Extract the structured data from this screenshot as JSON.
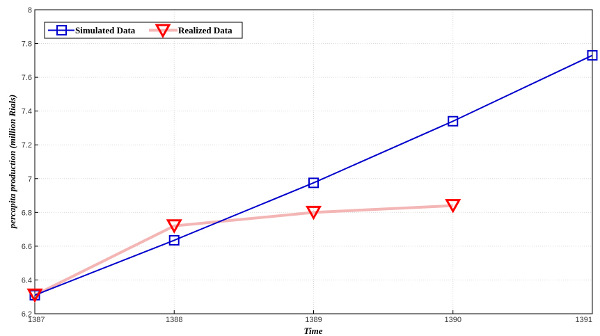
{
  "chart_data": {
    "type": "line",
    "x": [
      1387,
      1388,
      1389,
      1390,
      1391
    ],
    "xticks": [
      "1387",
      "1388",
      "1389",
      "1390",
      "1391"
    ],
    "xlim": [
      1387,
      1391
    ],
    "ylim": [
      6.2,
      8
    ],
    "yticks": [
      "6.2",
      "6.4",
      "6.6",
      "6.8",
      "7",
      "7.2",
      "7.4",
      "7.6",
      "7.8",
      "8"
    ],
    "xlabel": "Time",
    "ylabel": "percapita production (million Rials)",
    "grid": true,
    "legend_position": "top-left",
    "series": [
      {
        "name": "Simulated Data",
        "x": [
          1387,
          1388,
          1389,
          1390,
          1391
        ],
        "values": [
          6.31,
          6.635,
          6.975,
          7.34,
          7.73
        ],
        "color": "#0000cc",
        "marker": "square"
      },
      {
        "name": "Realized Data",
        "x": [
          1387,
          1388,
          1389,
          1390
        ],
        "values": [
          6.31,
          6.72,
          6.8,
          6.84
        ],
        "color": "#f4b5b5",
        "marker_color": "#ff0000",
        "marker": "triangle-down"
      }
    ]
  }
}
